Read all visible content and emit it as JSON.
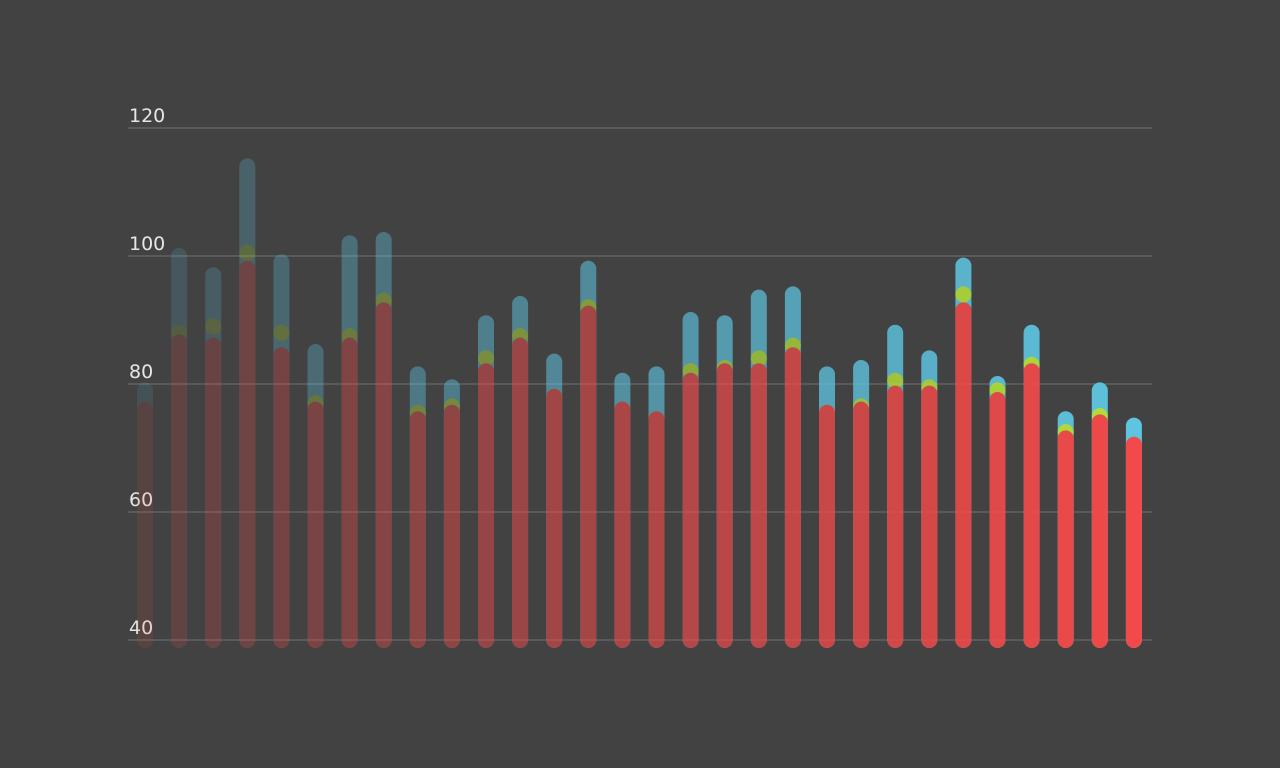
{
  "chart_data": {
    "type": "bar",
    "ylim": [
      40,
      120
    ],
    "yticks": [
      40,
      60,
      80,
      100,
      120
    ],
    "grid": true,
    "colors": {
      "background": "#424242",
      "grid": "#6a6a6a",
      "tick_label": "#e6e6e6",
      "bar_top": "#5ec4e0",
      "bar_bottom": "#f24a4a",
      "mid_marker": "#b4e23a",
      "low_marker": "#f24a4a"
    },
    "series": [
      {
        "values": [
          79,
          100,
          97,
          114,
          99,
          85,
          102,
          102.5,
          81.5,
          79.5,
          89.5,
          92.5,
          83.5,
          98,
          80.5,
          81.5,
          90,
          89.5,
          93.5,
          94,
          81.5,
          82.5,
          88,
          84,
          98.5,
          80,
          88,
          74.5,
          79,
          73.5
        ]
      },
      {
        "values": [
          76,
          88,
          89,
          100.5,
          88,
          77,
          87.5,
          93,
          75.5,
          76.5,
          84,
          87.5,
          78,
          92,
          76,
          74.5,
          82,
          82.5,
          84,
          86,
          75.5,
          76.5,
          80.5,
          79.5,
          94,
          79,
          83,
          72.5,
          75,
          70
        ]
      },
      {
        "values": [
          76,
          86.5,
          86,
          98,
          84.5,
          76,
          86,
          91.5,
          74.5,
          75.5,
          82,
          86,
          78,
          91,
          76,
          74.5,
          80.5,
          82,
          82,
          84.5,
          75.5,
          76,
          78.5,
          78.5,
          91.5,
          77.5,
          82,
          71.5,
          74,
          70.5
        ]
      }
    ]
  }
}
